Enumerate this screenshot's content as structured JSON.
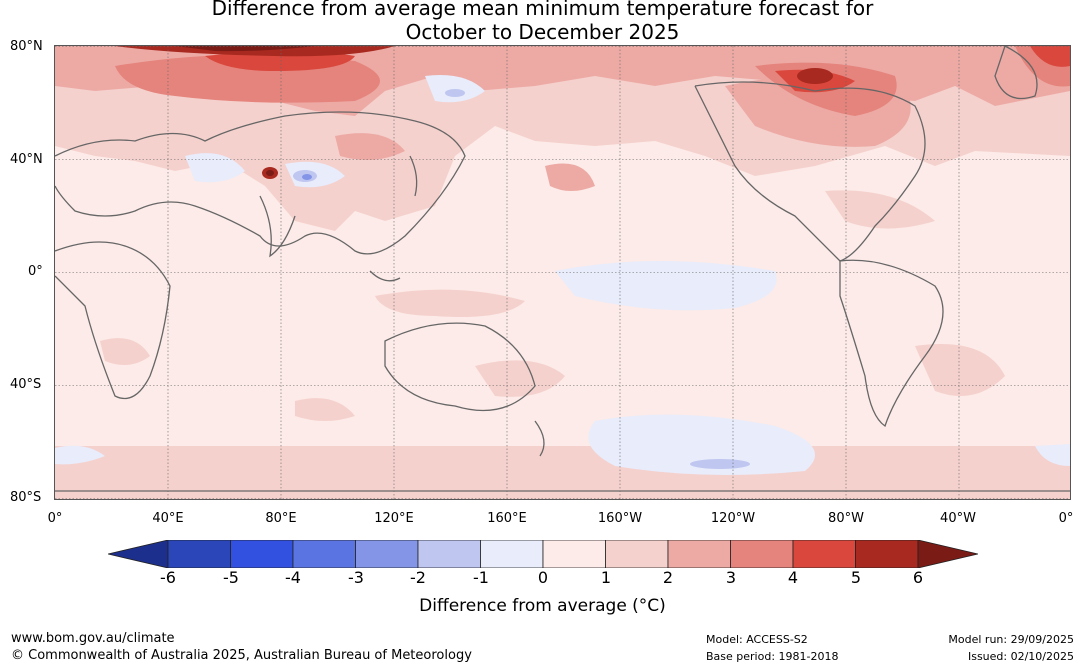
{
  "title": {
    "line1": "Difference from average mean minimum temperature forecast for",
    "line2": "October to December 2025"
  },
  "map": {
    "lat_labels": [
      "80°N",
      "40°N",
      "0°",
      "40°S",
      "80°S"
    ],
    "lon_labels": [
      "0°",
      "40°E",
      "80°E",
      "120°E",
      "160°E",
      "160°W",
      "120°W",
      "80°W",
      "40°W",
      "0°"
    ]
  },
  "colorbar": {
    "ticks": [
      "-6",
      "-5",
      "-4",
      "-3",
      "-2",
      "-1",
      "0",
      "1",
      "2",
      "3",
      "4",
      "5",
      "6"
    ],
    "colors": [
      "#1d2f8c",
      "#2a46b8",
      "#3251e0",
      "#5a75e2",
      "#8495e8",
      "#bfc6f0",
      "#e8ecfb",
      "#fcebe8",
      "#f5d1cd",
      "#edaaa5",
      "#e5847c",
      "#d9473d",
      "#a8291f",
      "#7a1b16"
    ],
    "label": "Difference from average (°C)"
  },
  "footer": {
    "url": "www.bom.gov.au/climate",
    "copyright": "© Commonwealth of Australia 2025, Australian Bureau of Meteorology",
    "model": "Model: ACCESS-S2",
    "base_period": "Base period: 1981-2018",
    "model_run": "Model run: 29/09/2025",
    "issued": "Issued: 02/10/2025"
  }
}
